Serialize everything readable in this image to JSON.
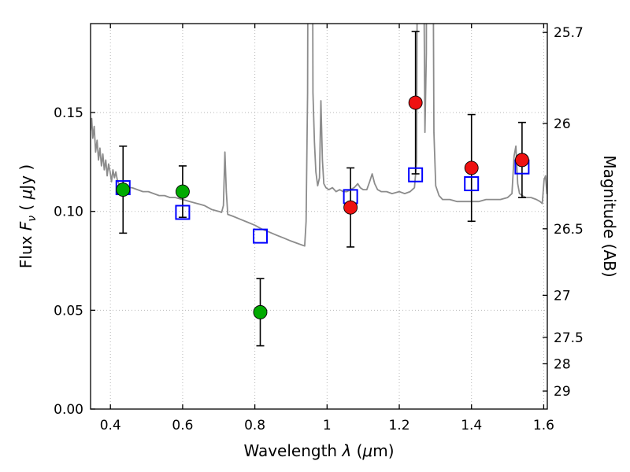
{
  "figure": {
    "background": "#ffffff"
  },
  "chart_data": {
    "type": "line+scatter",
    "title": "",
    "xlabel_segments": [
      {
        "t": "Wavelength  "
      },
      {
        "t": "λ",
        "i": true
      },
      {
        "t": " ("
      },
      {
        "t": "μ",
        "i": true
      },
      {
        "t": "m)"
      }
    ],
    "ylabel_left_segments": [
      {
        "t": "Flux  "
      },
      {
        "t": "F",
        "i": true
      },
      {
        "t": "ν",
        "i": true,
        "sub": true
      },
      {
        "t": "  ( "
      },
      {
        "t": "μ",
        "i": true
      },
      {
        "t": "Jy )"
      }
    ],
    "ylabel_right_segments": [
      {
        "t": "Magnitude (AB)"
      }
    ],
    "xlim": [
      0.345,
      1.61
    ],
    "ylim": [
      0,
      0.195
    ],
    "x_ticks": {
      "values": [
        0.4,
        0.6,
        0.8,
        1.0,
        1.2,
        1.4,
        1.6
      ],
      "labels": [
        "0.4",
        "0.6",
        "0.8",
        "1",
        "1.2",
        "1.4",
        "1.6"
      ]
    },
    "y_ticks_left": {
      "values": [
        0,
        0.05,
        0.1,
        0.15
      ],
      "labels": [
        "0.00",
        "0.05",
        "0.10",
        "0.15"
      ]
    },
    "y_ticks_right": {
      "magnitudes": [
        25.7,
        26,
        26.5,
        27,
        27.5,
        28,
        29
      ],
      "labels": [
        "25.7",
        "26",
        "26.5",
        "27",
        "27.5",
        "28",
        "29"
      ]
    },
    "mag_zeropoint_ab_microjansky": 23.9,
    "grid": {
      "show": true,
      "style": "dotted",
      "color": "#b8b8b8"
    },
    "frame_color": "#000000",
    "spectrum": {
      "name": "model-spectrum",
      "color": "#8c8c8c",
      "line_width": 1.8,
      "points": [
        [
          0.345,
          0.141
        ],
        [
          0.348,
          0.147
        ],
        [
          0.351,
          0.137
        ],
        [
          0.355,
          0.143
        ],
        [
          0.359,
          0.13
        ],
        [
          0.363,
          0.136
        ],
        [
          0.367,
          0.126
        ],
        [
          0.371,
          0.132
        ],
        [
          0.375,
          0.123
        ],
        [
          0.379,
          0.129
        ],
        [
          0.383,
          0.121
        ],
        [
          0.387,
          0.126
        ],
        [
          0.391,
          0.118
        ],
        [
          0.395,
          0.124
        ],
        [
          0.399,
          0.12
        ],
        [
          0.403,
          0.115
        ],
        [
          0.407,
          0.121
        ],
        [
          0.411,
          0.117
        ],
        [
          0.415,
          0.12
        ],
        [
          0.419,
          0.116
        ],
        [
          0.423,
          0.114
        ],
        [
          0.43,
          0.113
        ],
        [
          0.445,
          0.112
        ],
        [
          0.46,
          0.112
        ],
        [
          0.475,
          0.111
        ],
        [
          0.49,
          0.11
        ],
        [
          0.505,
          0.11
        ],
        [
          0.52,
          0.109
        ],
        [
          0.535,
          0.108
        ],
        [
          0.55,
          0.108
        ],
        [
          0.565,
          0.107
        ],
        [
          0.58,
          0.107
        ],
        [
          0.6,
          0.106
        ],
        [
          0.62,
          0.105
        ],
        [
          0.64,
          0.104
        ],
        [
          0.66,
          0.103
        ],
        [
          0.68,
          0.101
        ],
        [
          0.7,
          0.1
        ],
        [
          0.708,
          0.0995
        ],
        [
          0.713,
          0.103
        ],
        [
          0.717,
          0.13
        ],
        [
          0.721,
          0.11
        ],
        [
          0.725,
          0.0985
        ],
        [
          0.74,
          0.0975
        ],
        [
          0.76,
          0.096
        ],
        [
          0.78,
          0.0945
        ],
        [
          0.8,
          0.093
        ],
        [
          0.82,
          0.091
        ],
        [
          0.84,
          0.0895
        ],
        [
          0.86,
          0.088
        ],
        [
          0.88,
          0.0865
        ],
        [
          0.9,
          0.085
        ],
        [
          0.915,
          0.084
        ],
        [
          0.93,
          0.083
        ],
        [
          0.938,
          0.0825
        ],
        [
          0.942,
          0.095
        ],
        [
          0.946,
          0.16
        ],
        [
          0.95,
          0.45
        ],
        [
          0.957,
          0.45
        ],
        [
          0.961,
          0.16
        ],
        [
          0.965,
          0.135
        ],
        [
          0.969,
          0.12
        ],
        [
          0.974,
          0.113
        ],
        [
          0.979,
          0.117
        ],
        [
          0.983,
          0.156
        ],
        [
          0.987,
          0.126
        ],
        [
          0.991,
          0.114
        ],
        [
          0.997,
          0.112
        ],
        [
          1.005,
          0.111
        ],
        [
          1.015,
          0.112
        ],
        [
          1.025,
          0.11
        ],
        [
          1.035,
          0.111
        ],
        [
          1.045,
          0.11
        ],
        [
          1.055,
          0.11
        ],
        [
          1.065,
          0.111
        ],
        [
          1.075,
          0.112
        ],
        [
          1.085,
          0.114
        ],
        [
          1.092,
          0.112
        ],
        [
          1.1,
          0.111
        ],
        [
          1.11,
          0.111
        ],
        [
          1.118,
          0.115
        ],
        [
          1.125,
          0.119
        ],
        [
          1.132,
          0.114
        ],
        [
          1.14,
          0.111
        ],
        [
          1.15,
          0.11
        ],
        [
          1.165,
          0.11
        ],
        [
          1.18,
          0.109
        ],
        [
          1.2,
          0.11
        ],
        [
          1.215,
          0.109
        ],
        [
          1.23,
          0.11
        ],
        [
          1.242,
          0.112
        ],
        [
          1.248,
          0.125
        ],
        [
          1.252,
          0.35
        ],
        [
          1.257,
          0.8
        ],
        [
          1.263,
          0.8
        ],
        [
          1.267,
          0.25
        ],
        [
          1.271,
          0.14
        ],
        [
          1.275,
          0.18
        ],
        [
          1.279,
          0.6
        ],
        [
          1.285,
          0.8
        ],
        [
          1.291,
          0.35
        ],
        [
          1.296,
          0.14
        ],
        [
          1.301,
          0.113
        ],
        [
          1.31,
          0.108
        ],
        [
          1.32,
          0.106
        ],
        [
          1.34,
          0.106
        ],
        [
          1.36,
          0.105
        ],
        [
          1.38,
          0.105
        ],
        [
          1.4,
          0.105
        ],
        [
          1.42,
          0.105
        ],
        [
          1.44,
          0.106
        ],
        [
          1.46,
          0.106
        ],
        [
          1.48,
          0.106
        ],
        [
          1.5,
          0.107
        ],
        [
          1.512,
          0.109
        ],
        [
          1.518,
          0.128
        ],
        [
          1.523,
          0.133
        ],
        [
          1.528,
          0.114
        ],
        [
          1.533,
          0.109
        ],
        [
          1.54,
          0.108
        ],
        [
          1.55,
          0.107
        ],
        [
          1.565,
          0.107
        ],
        [
          1.58,
          0.106
        ],
        [
          1.59,
          0.105
        ],
        [
          1.596,
          0.104
        ],
        [
          1.601,
          0.116
        ],
        [
          1.605,
          0.118
        ],
        [
          1.609,
          0.109
        ],
        [
          1.61,
          0.113
        ]
      ]
    },
    "model_photometry": {
      "name": "model-photometry",
      "marker": "open-square",
      "color": "#0000ff",
      "marker_size": 17,
      "points": [
        [
          0.435,
          0.112
        ],
        [
          0.6,
          0.0995
        ],
        [
          0.815,
          0.0875
        ],
        [
          1.065,
          0.1075
        ],
        [
          1.245,
          0.1185
        ],
        [
          1.4,
          0.114
        ],
        [
          1.54,
          0.1225
        ]
      ]
    },
    "observed_photometry": [
      {
        "name": "observed-optical",
        "marker": "circle",
        "color": "#00aa00",
        "marker_size": 17,
        "error_color": "#000000",
        "points": [
          {
            "x": 0.435,
            "flux": 0.111,
            "err": 0.022
          },
          {
            "x": 0.6,
            "flux": 0.11,
            "err": 0.013
          },
          {
            "x": 0.815,
            "flux": 0.049,
            "err": 0.017
          }
        ]
      },
      {
        "name": "observed-infrared",
        "marker": "circle",
        "color": "#ee1111",
        "marker_size": 17,
        "error_color": "#000000",
        "points": [
          {
            "x": 1.065,
            "flux": 0.102,
            "err": 0.02
          },
          {
            "x": 1.245,
            "flux": 0.155,
            "err": 0.036
          },
          {
            "x": 1.4,
            "flux": 0.122,
            "err": 0.027
          },
          {
            "x": 1.54,
            "flux": 0.126,
            "err": 0.019
          }
        ]
      }
    ]
  }
}
